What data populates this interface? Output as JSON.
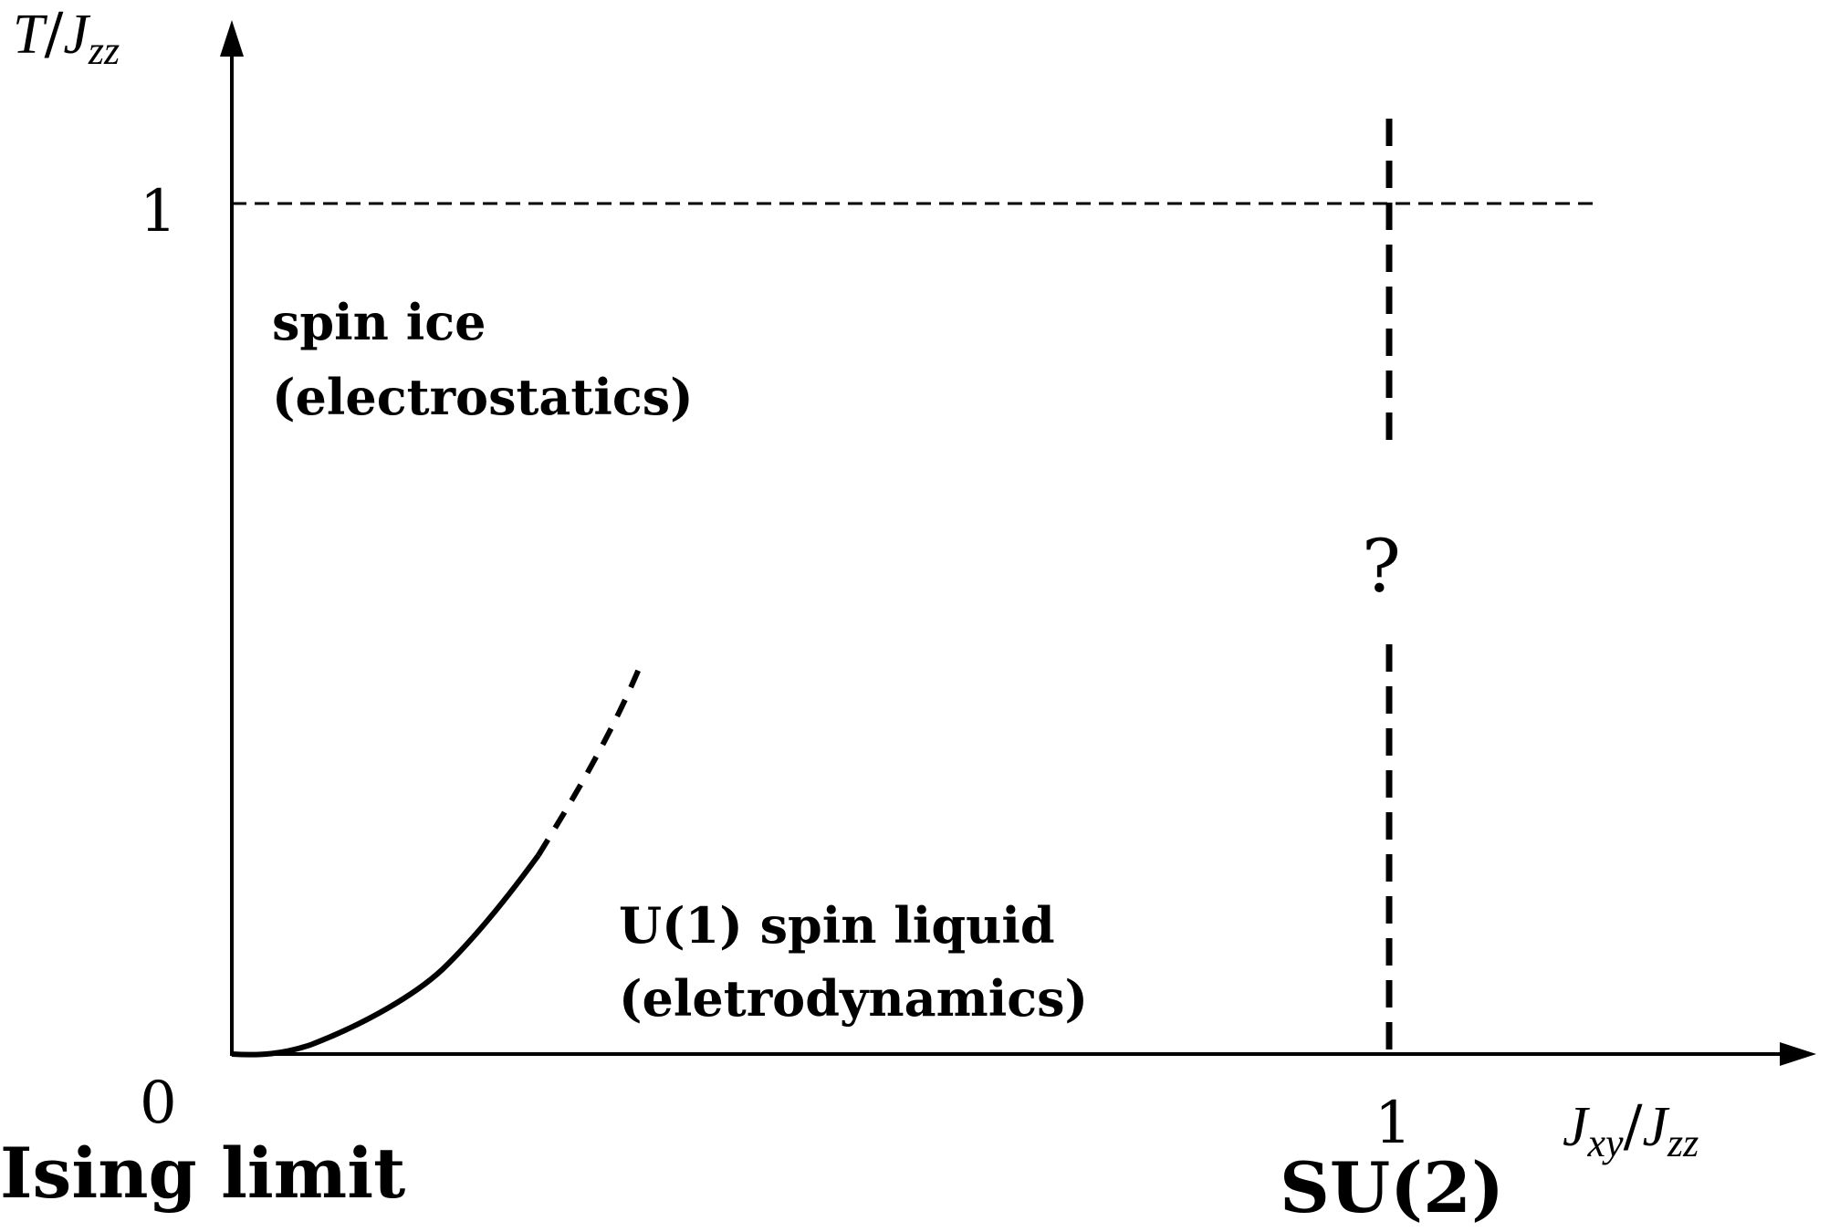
{
  "diagram": {
    "axes": {
      "y_label_main": "T",
      "y_label_slash": "/",
      "y_label_denom": "J",
      "y_label_denom_sub": "zz",
      "x_label_num": "J",
      "x_label_num_sub": "xy",
      "x_label_slash": "/",
      "x_label_denom": "J",
      "x_label_denom_sub": "zz",
      "origin_tick": "0",
      "y_tick": "1",
      "x_tick": "1"
    },
    "regions": {
      "spin_ice_line1": "spin ice",
      "spin_ice_line2": "(electrostatics)",
      "liquid_line1": "U(1) spin liquid",
      "liquid_line2": "(eletrodynamics)",
      "unknown_mark": "?"
    },
    "limits": {
      "ising": "Ising limit",
      "su2": "SU(2)"
    },
    "colors": {
      "ink": "#000000",
      "background": "#ffffff"
    }
  }
}
